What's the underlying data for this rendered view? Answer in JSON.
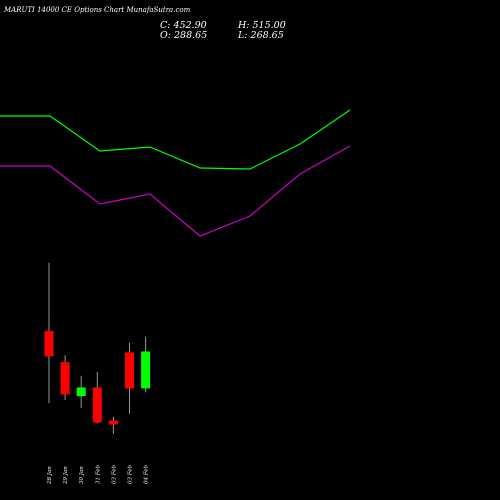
{
  "header": {
    "title": "MARUTI 14000  CE Options  Chart MunafaSutra.com",
    "close": "C: 452.90",
    "open": "O: 288.65",
    "high": "H: 515.00",
    "low": "L: 268.65"
  },
  "chart_data": {
    "type": "candlestick",
    "categories": [
      "28 Jan",
      "29 Jan",
      "30 Jan",
      "31 Feb",
      "03 Feb",
      "03 Feb",
      "04 Feb"
    ],
    "candles": [
      {
        "open": 346,
        "close": 372,
        "high": 442,
        "low": 298,
        "color": "red"
      },
      {
        "open": 340,
        "close": 307,
        "high": 347,
        "low": 301,
        "color": "red"
      },
      {
        "open": 305,
        "close": 314,
        "high": 326,
        "low": 293,
        "color": "lime"
      },
      {
        "open": 314,
        "close": 278,
        "high": 330,
        "low": 277,
        "color": "red"
      },
      {
        "open": 280,
        "close": 276,
        "high": 284,
        "low": 266,
        "color": "red"
      },
      {
        "open": 350,
        "close": 313,
        "high": 360,
        "low": 287,
        "color": "red"
      },
      {
        "open": 313,
        "close": 351,
        "high": 366,
        "low": 309,
        "color": "lime"
      }
    ],
    "series": [
      {
        "color": "#00ff00",
        "x": [
          0,
          1,
          2,
          3,
          4,
          5,
          6,
          7
        ],
        "values": [
          0,
          0,
          -35,
          -31,
          -52,
          -53,
          -28,
          6
        ]
      },
      {
        "color": "#cc00cc",
        "x": [
          0,
          1,
          2,
          3,
          4,
          5,
          6,
          7
        ],
        "values": [
          0,
          0,
          -38,
          -28,
          -70,
          -50,
          -8,
          20
        ]
      }
    ],
    "grid": false
  },
  "colors": {
    "background": "#000000",
    "up": "#00ff00",
    "down": "#ff0000",
    "wick": "#999999",
    "text": "#ffffff"
  }
}
